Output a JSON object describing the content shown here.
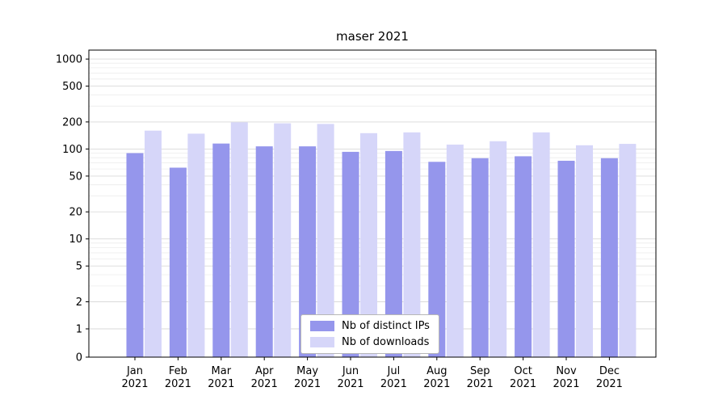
{
  "chart_data": {
    "type": "bar",
    "title": "maser 2021",
    "yscale": "symlog",
    "grid": true,
    "legend_position": "lower center",
    "ylim": [
      0,
      1258
    ],
    "yticks": [
      0,
      1,
      2,
      5,
      10,
      20,
      50,
      100,
      200,
      500,
      1000
    ],
    "categories": [
      {
        "month": "Jan",
        "year": "2021"
      },
      {
        "month": "Feb",
        "year": "2021"
      },
      {
        "month": "Mar",
        "year": "2021"
      },
      {
        "month": "Apr",
        "year": "2021"
      },
      {
        "month": "May",
        "year": "2021"
      },
      {
        "month": "Jun",
        "year": "2021"
      },
      {
        "month": "Jul",
        "year": "2021"
      },
      {
        "month": "Aug",
        "year": "2021"
      },
      {
        "month": "Sep",
        "year": "2021"
      },
      {
        "month": "Oct",
        "year": "2021"
      },
      {
        "month": "Nov",
        "year": "2021"
      },
      {
        "month": "Dec",
        "year": "2021"
      }
    ],
    "series": [
      {
        "name": "Nb of distinct IPs",
        "color": "#9596ec",
        "values": [
          90,
          62,
          115,
          107,
          107,
          93,
          95,
          72,
          79,
          83,
          74,
          79
        ]
      },
      {
        "name": "Nb of downloads",
        "color": "#d6d6f9",
        "values": [
          160,
          148,
          198,
          193,
          190,
          150,
          153,
          112,
          122,
          153,
          110,
          114
        ]
      }
    ]
  }
}
